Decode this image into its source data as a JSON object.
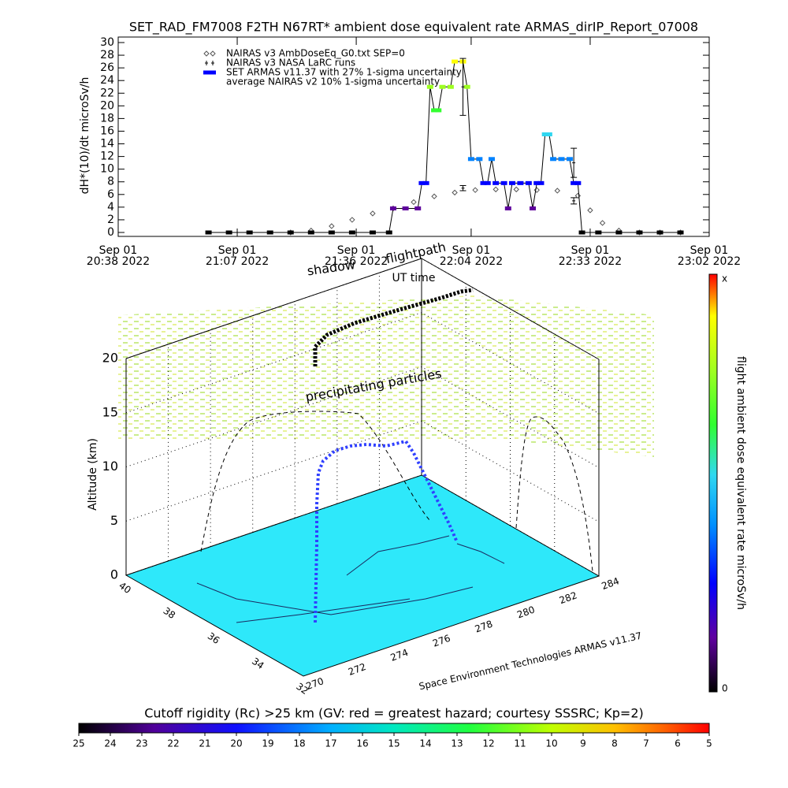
{
  "chart_data": [
    {
      "type": "line",
      "title": "SET_RAD_FM7008  F2TH N67RT* ambient dose equivalent rate ARMAS_dirIP_Report_07008",
      "ylabel": "dH*(10)/dt microSv/h",
      "xlabel": "UT time",
      "xlim": [
        "20:38",
        "23:02"
      ],
      "xticks": [
        {
          "value": "20:38",
          "label": [
            "Sep 01",
            "20:38 2022"
          ]
        },
        {
          "value": "21:07",
          "label": [
            "Sep 01",
            "21:07 2022"
          ]
        },
        {
          "value": "21:36",
          "label": [
            "Sep 01",
            "21:36 2022"
          ]
        },
        {
          "value": "22:04",
          "label": [
            "Sep 01",
            "22:04 2022"
          ]
        },
        {
          "value": "22:33",
          "label": [
            "Sep 01",
            "22:33 2022"
          ]
        },
        {
          "value": "23:02",
          "label": [
            "Sep 01",
            "23:02 2022"
          ]
        }
      ],
      "ylim": [
        0,
        30
      ],
      "yticks": [
        0,
        2,
        4,
        6,
        8,
        10,
        12,
        14,
        16,
        18,
        20,
        22,
        24,
        26,
        28,
        30
      ],
      "series": [
        {
          "name": "NAIRAS v3 AmbDoseEq_G0.txt SEP=0",
          "marker": "diamond",
          "color": "#555555",
          "x": [
            "21:20",
            "21:25",
            "21:30",
            "21:35",
            "21:40",
            "21:45",
            "21:50",
            "21:55",
            "22:00",
            "22:05",
            "22:10",
            "22:15",
            "22:20",
            "22:25",
            "22:30",
            "22:33",
            "22:36",
            "22:40",
            "22:45",
            "22:50",
            "22:55"
          ],
          "values": [
            0,
            0.3,
            1,
            2,
            3,
            3.8,
            4.8,
            5.7,
            6.3,
            6.7,
            6.8,
            6.8,
            6.7,
            6.6,
            5.8,
            3.5,
            1.5,
            0.3,
            0,
            0,
            0
          ]
        },
        {
          "name": "NAIRAS v3 NASA LaRC runs",
          "marker": "errorbar",
          "color": "#000000",
          "x": [
            "22:02",
            "22:29"
          ],
          "values": [
            7,
            5
          ],
          "errors": [
            0.4,
            0.5
          ]
        },
        {
          "name": "SET ARMAS v11.37 with 27% 1-sigma uncertainty",
          "marker": "square",
          "color": "#0000ff",
          "line_color": "#000000",
          "x": [
            "21:00",
            "21:05",
            "21:10",
            "21:15",
            "21:20",
            "21:25",
            "21:30",
            "21:35",
            "21:40",
            "21:44",
            "21:45",
            "21:48",
            "21:51",
            "21:52",
            "21:53",
            "21:54",
            "21:55",
            "21:56",
            "21:57",
            "21:59",
            "22:00",
            "22:02",
            "22:03",
            "22:04",
            "22:06",
            "22:07",
            "22:08",
            "22:09",
            "22:10",
            "22:12",
            "22:13",
            "22:14",
            "22:16",
            "22:18",
            "22:19",
            "22:20",
            "22:21",
            "22:22",
            "22:23",
            "22:24",
            "22:26",
            "22:28",
            "22:29",
            "22:30",
            "22:31",
            "22:35",
            "22:40",
            "22:45",
            "22:50",
            "22:55"
          ],
          "values": [
            0,
            0,
            0,
            0,
            0,
            0,
            0,
            0,
            0,
            0,
            3.8,
            3.8,
            3.8,
            7.8,
            7.8,
            23,
            19.3,
            19.3,
            23,
            23,
            27,
            27,
            23,
            11.6,
            11.6,
            7.8,
            7.8,
            11.6,
            7.8,
            7.8,
            3.8,
            7.8,
            7.8,
            7.8,
            3.8,
            7.8,
            7.8,
            15.5,
            15.5,
            11.6,
            11.6,
            11.6,
            7.8,
            7.8,
            0,
            0,
            0,
            0,
            0,
            0
          ]
        },
        {
          "name": "average NAIRAS v2 10% 1-sigma uncertainty",
          "marker": "errorbar-only",
          "color": "#000000",
          "x": [
            "22:02",
            "22:29"
          ],
          "values": [
            23,
            11
          ],
          "errors": [
            4.5,
            2.3
          ]
        }
      ]
    },
    {
      "type": "surface3d",
      "annotations": [
        "shadow",
        "flightpath",
        "precipitating particles"
      ],
      "zlabel": "Altitude (km)",
      "credit": "Space Environment Technologies ARMAS v11.37",
      "xlim": [
        270,
        284
      ],
      "xticks": [
        270,
        272,
        274,
        276,
        278,
        280,
        282,
        284
      ],
      "ylim": [
        40,
        32
      ],
      "yticks": [
        40,
        38,
        36,
        34,
        32
      ],
      "zlim": [
        0,
        20
      ],
      "zticks": [
        0,
        5,
        10,
        15,
        20
      ]
    },
    {
      "type": "colorbar",
      "orientation": "vertical",
      "label": "flight ambient dose equivalent rate microSv/h",
      "tick_labels": [
        "x",
        "0"
      ],
      "colormap": [
        [
          0,
          "#000000"
        ],
        [
          0.13,
          "#6000a0"
        ],
        [
          0.26,
          "#0000ff"
        ],
        [
          0.4,
          "#0090ff"
        ],
        [
          0.52,
          "#30d8f0"
        ],
        [
          0.64,
          "#30ff30"
        ],
        [
          0.77,
          "#a0ff20"
        ],
        [
          0.9,
          "#ffff00"
        ],
        [
          0.95,
          "#ff8000"
        ],
        [
          1,
          "#ff0000"
        ]
      ]
    },
    {
      "type": "colorbar",
      "orientation": "horizontal",
      "title": "Cutoff rigidity (Rc) >25 km (GV: red = greatest hazard; courtesy SSSRC; Kp=2)",
      "xlim": [
        25,
        5
      ],
      "xticks": [
        25,
        24,
        23,
        22,
        21,
        20,
        19,
        18,
        17,
        16,
        15,
        14,
        13,
        12,
        11,
        10,
        9,
        8,
        7,
        6,
        5
      ],
      "colormap": [
        [
          0,
          "#000000"
        ],
        [
          0.12,
          "#50009a"
        ],
        [
          0.25,
          "#1010ff"
        ],
        [
          0.4,
          "#00b0ff"
        ],
        [
          0.5,
          "#00e8c0"
        ],
        [
          0.62,
          "#20ff40"
        ],
        [
          0.75,
          "#c0ff00"
        ],
        [
          0.85,
          "#ffc000"
        ],
        [
          0.93,
          "#ff6000"
        ],
        [
          1,
          "#ff0000"
        ]
      ]
    }
  ]
}
